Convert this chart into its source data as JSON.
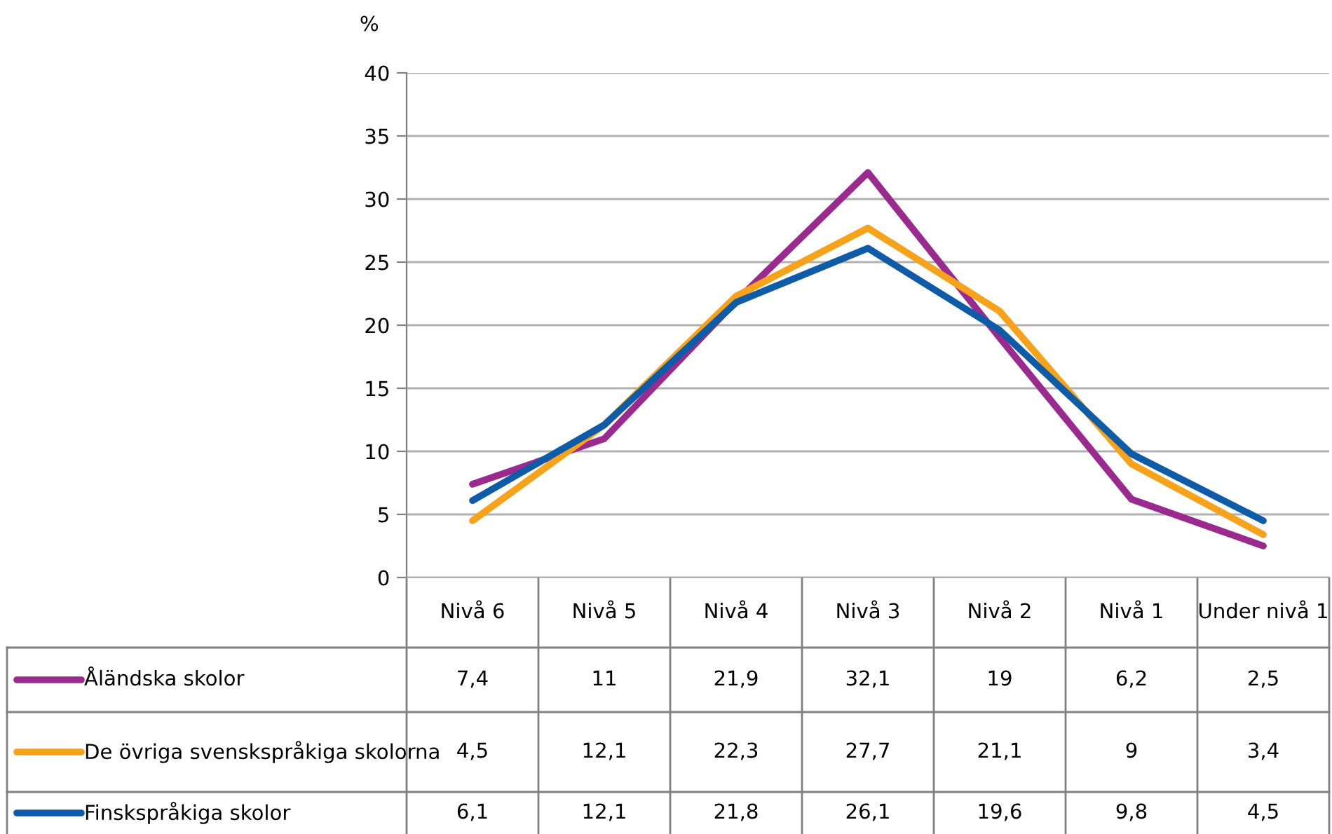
{
  "chart_data": {
    "type": "line",
    "ylabel": "%",
    "categories": [
      "Nivå 6",
      "Nivå 5",
      "Nivå 4",
      "Nivå 3",
      "Nivå 2",
      "Nivå 1",
      "Under nivå 1"
    ],
    "series": [
      {
        "name": "Åländska skolor",
        "color": "#9b2a8f",
        "values": [
          7.4,
          11,
          21.9,
          32.1,
          19,
          6.2,
          2.5
        ],
        "value_labels": [
          "7,4",
          "11",
          "21,9",
          "32,1",
          "19",
          "6,2",
          "2,5"
        ]
      },
      {
        "name": "De övriga svenskspråkiga skolorna",
        "color": "#f7a21b",
        "values": [
          4.5,
          12.1,
          22.3,
          27.7,
          21.1,
          9,
          3.4
        ],
        "value_labels": [
          "4,5",
          "12,1",
          "22,3",
          "27,7",
          "21,1",
          "9",
          "3,4"
        ]
      },
      {
        "name": "Finskspråkiga skolor",
        "color": "#0e5ca8",
        "values": [
          6.1,
          12.1,
          21.8,
          26.1,
          19.6,
          9.8,
          4.5
        ],
        "value_labels": [
          "6,1",
          "12,1",
          "21,8",
          "26,1",
          "19,6",
          "9,8",
          "4,5"
        ]
      }
    ],
    "ylim": [
      0,
      40
    ],
    "yticks": [
      0,
      5,
      10,
      15,
      20,
      25,
      30,
      35,
      40
    ],
    "grid": "y",
    "legend": "bottom",
    "marker": "none",
    "line_style": "solid"
  }
}
